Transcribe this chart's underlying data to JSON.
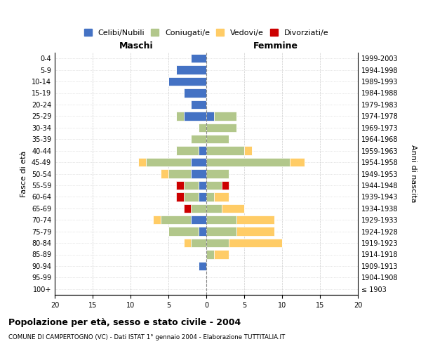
{
  "age_groups": [
    "100+",
    "95-99",
    "90-94",
    "85-89",
    "80-84",
    "75-79",
    "70-74",
    "65-69",
    "60-64",
    "55-59",
    "50-54",
    "45-49",
    "40-44",
    "35-39",
    "30-34",
    "25-29",
    "20-24",
    "15-19",
    "10-14",
    "5-9",
    "0-4"
  ],
  "birth_years": [
    "≤ 1903",
    "1904-1908",
    "1909-1913",
    "1914-1918",
    "1919-1923",
    "1924-1928",
    "1929-1933",
    "1934-1938",
    "1939-1943",
    "1944-1948",
    "1949-1953",
    "1954-1958",
    "1959-1963",
    "1964-1968",
    "1969-1973",
    "1974-1978",
    "1979-1983",
    "1984-1988",
    "1989-1993",
    "1994-1998",
    "1999-2003"
  ],
  "colors": {
    "celibi": "#4472C4",
    "coniugati": "#B2C78B",
    "vedovi": "#FFCC66",
    "divorziati": "#CC0000"
  },
  "males": {
    "celibi": [
      0,
      0,
      1,
      0,
      0,
      1,
      2,
      0,
      1,
      1,
      2,
      2,
      1,
      0,
      0,
      3,
      2,
      3,
      5,
      4,
      2
    ],
    "coniugati": [
      0,
      0,
      0,
      0,
      2,
      4,
      4,
      2,
      2,
      2,
      3,
      6,
      3,
      2,
      1,
      1,
      0,
      0,
      0,
      0,
      0
    ],
    "vedovi": [
      0,
      0,
      0,
      0,
      1,
      0,
      1,
      0,
      0,
      0,
      1,
      1,
      0,
      0,
      0,
      0,
      0,
      0,
      0,
      0,
      0
    ],
    "divorziati": [
      0,
      0,
      0,
      0,
      0,
      0,
      0,
      1,
      1,
      1,
      0,
      0,
      0,
      0,
      0,
      0,
      0,
      0,
      0,
      0,
      0
    ]
  },
  "females": {
    "celibi": [
      0,
      0,
      0,
      0,
      0,
      0,
      0,
      0,
      0,
      0,
      0,
      0,
      0,
      0,
      0,
      1,
      0,
      0,
      0,
      0,
      0
    ],
    "coniugati": [
      0,
      0,
      0,
      1,
      3,
      4,
      4,
      2,
      1,
      2,
      3,
      11,
      5,
      3,
      4,
      3,
      0,
      0,
      0,
      0,
      0
    ],
    "vedovi": [
      0,
      0,
      0,
      2,
      7,
      5,
      5,
      3,
      2,
      0,
      0,
      2,
      1,
      0,
      0,
      0,
      0,
      0,
      0,
      0,
      0
    ],
    "divorziati": [
      0,
      0,
      0,
      0,
      0,
      0,
      0,
      0,
      0,
      1,
      0,
      0,
      0,
      0,
      0,
      0,
      0,
      0,
      0,
      0,
      0
    ]
  },
  "title": "Popolazione per età, sesso e stato civile - 2004",
  "subtitle": "COMUNE DI CAMPERTOGNO (VC) - Dati ISTAT 1° gennaio 2004 - Elaborazione TUTTITALIA.IT",
  "xlabel_left": "Maschi",
  "xlabel_right": "Femmine",
  "ylabel_left": "Fasce di età",
  "ylabel_right": "Anni di nascita",
  "xlim": 20,
  "xticks": [
    -20,
    -15,
    -10,
    -5,
    0,
    5,
    10,
    15,
    20
  ],
  "xtick_labels": [
    "20",
    "15",
    "10",
    "5",
    "0",
    "5",
    "10",
    "15",
    "20"
  ],
  "legend_labels": [
    "Celibi/Nubili",
    "Coniugati/e",
    "Vedovi/e",
    "Divorziati/e"
  ],
  "background_color": "#ffffff",
  "grid_color": "#cccccc"
}
